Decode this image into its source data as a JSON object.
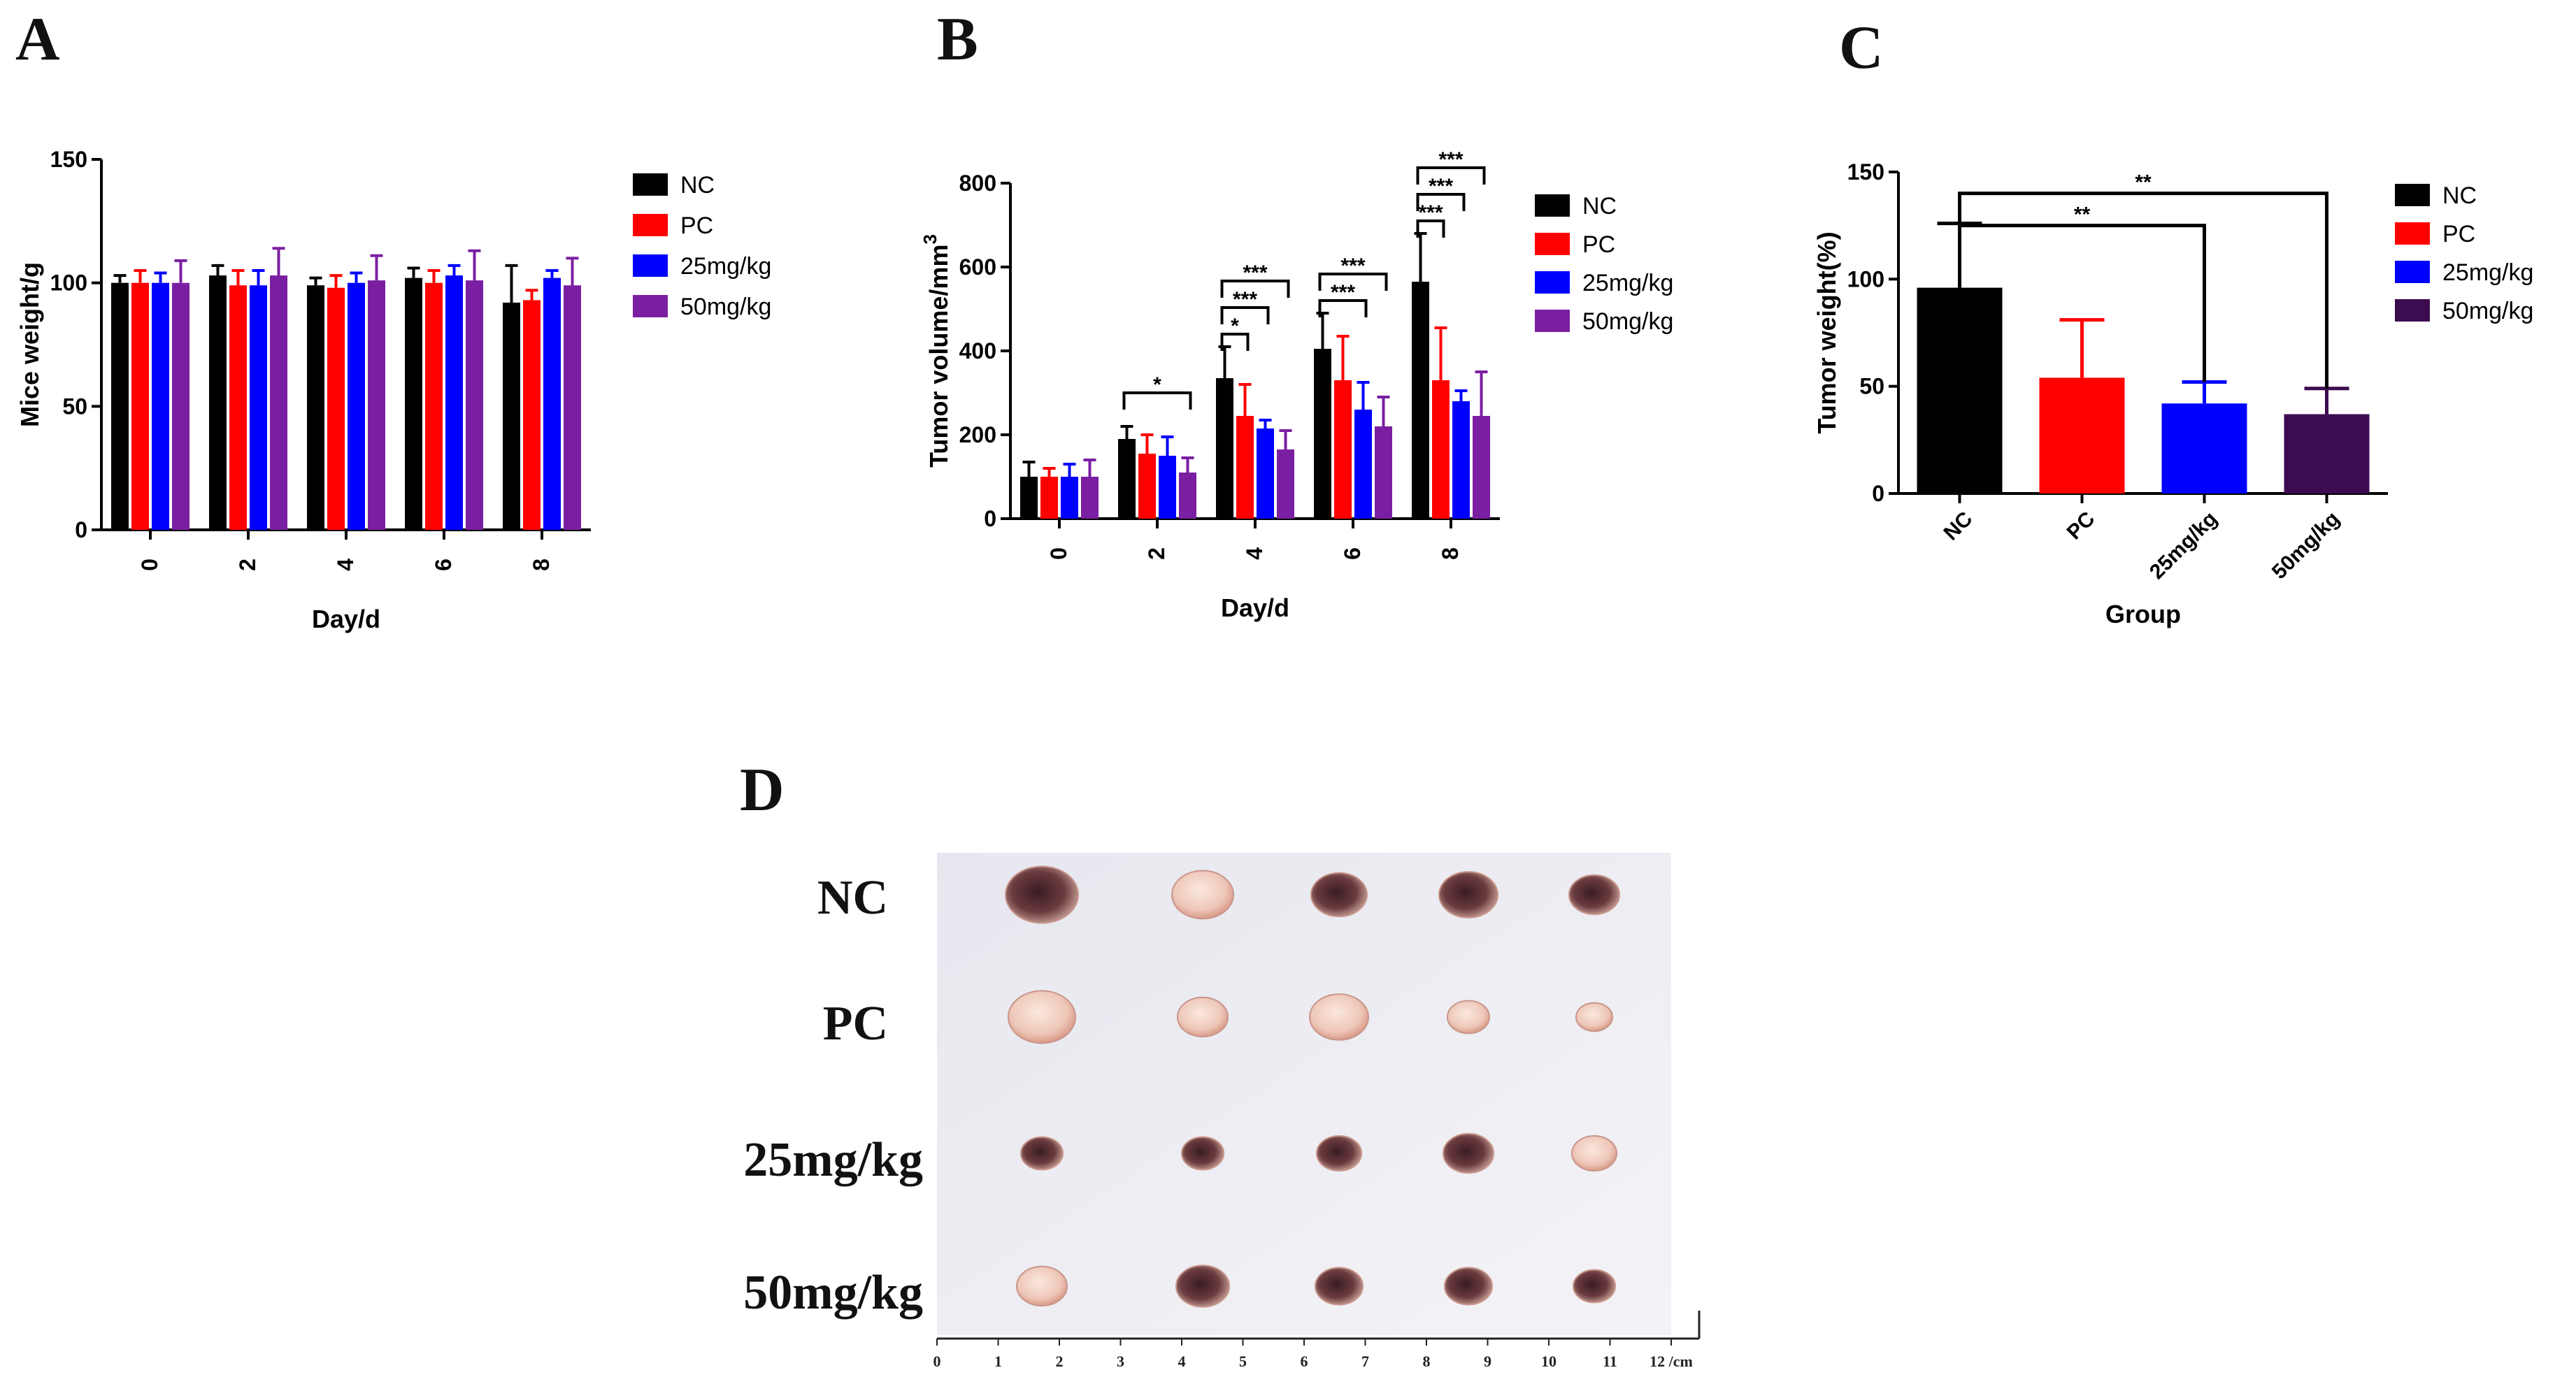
{
  "panels": {
    "a": "A",
    "b": "B",
    "c": "C",
    "d": "D"
  },
  "colors": {
    "NC": "#000000",
    "PC": "#ff0000",
    "25mg/kg": "#0000ff",
    "50mg/kg": "#7b1fa2",
    "C_50mg/kg": "#3d0b4f"
  },
  "chart_data": [
    {
      "id": "A",
      "type": "bar",
      "title": "",
      "xlabel": "Day/d",
      "ylabel": "Mice weight/g",
      "ylim": [
        0,
        150
      ],
      "yticks": [
        0,
        50,
        100,
        150
      ],
      "categories": [
        "0",
        "2",
        "4",
        "6",
        "8"
      ],
      "legend_position": "right",
      "series": [
        {
          "name": "NC",
          "values": [
            100,
            103,
            99,
            102,
            92
          ],
          "errors": [
            3,
            4,
            3,
            4,
            15
          ]
        },
        {
          "name": "PC",
          "values": [
            100,
            99,
            98,
            100,
            93
          ],
          "errors": [
            5,
            6,
            5,
            5,
            4
          ]
        },
        {
          "name": "25mg/kg",
          "values": [
            100,
            99,
            100,
            103,
            102
          ],
          "errors": [
            4,
            6,
            4,
            4,
            3
          ]
        },
        {
          "name": "50mg/kg",
          "values": [
            100,
            103,
            101,
            101,
            99
          ],
          "errors": [
            9,
            11,
            10,
            12,
            11
          ]
        }
      ]
    },
    {
      "id": "B",
      "type": "bar",
      "title": "",
      "xlabel": "Day/d",
      "ylabel": "Tumor volume/mm",
      "ylabel_sup": "3",
      "ylim": [
        0,
        800
      ],
      "yticks": [
        0,
        200,
        400,
        600,
        800
      ],
      "categories": [
        "0",
        "2",
        "4",
        "6",
        "8"
      ],
      "legend_position": "right",
      "series": [
        {
          "name": "NC",
          "values": [
            100,
            190,
            335,
            405,
            565
          ],
          "errors": [
            35,
            30,
            75,
            85,
            115
          ]
        },
        {
          "name": "PC",
          "values": [
            100,
            155,
            245,
            330,
            330
          ],
          "errors": [
            20,
            45,
            75,
            105,
            125
          ]
        },
        {
          "name": "25mg/kg",
          "values": [
            100,
            150,
            215,
            260,
            280
          ],
          "errors": [
            30,
            45,
            20,
            65,
            25
          ]
        },
        {
          "name": "50mg/kg",
          "values": [
            100,
            110,
            165,
            220,
            245
          ],
          "errors": [
            40,
            35,
            45,
            70,
            105
          ]
        }
      ],
      "significance": [
        {
          "day": "2",
          "to": "50mg/kg",
          "label": "*"
        },
        {
          "day": "4",
          "to": "PC",
          "label": "*"
        },
        {
          "day": "4",
          "to": "25mg/kg",
          "label": "***"
        },
        {
          "day": "4",
          "to": "50mg/kg",
          "label": "***"
        },
        {
          "day": "6",
          "to": "25mg/kg",
          "label": "***"
        },
        {
          "day": "6",
          "to": "50mg/kg",
          "label": "***"
        },
        {
          "day": "8",
          "to": "PC",
          "label": "***"
        },
        {
          "day": "8",
          "to": "25mg/kg",
          "label": "***"
        },
        {
          "day": "8",
          "to": "50mg/kg",
          "label": "***"
        }
      ]
    },
    {
      "id": "C",
      "type": "bar",
      "title": "",
      "xlabel": "Group",
      "ylabel": "Tumor weight(%)",
      "ylim": [
        0,
        150
      ],
      "yticks": [
        0,
        50,
        100,
        150
      ],
      "categories": [
        "NC",
        "PC",
        "25mg/kg",
        "50mg/kg"
      ],
      "legend_position": "right",
      "values": [
        96,
        54,
        42,
        37
      ],
      "errors": [
        30,
        27,
        10,
        12
      ],
      "significance": [
        {
          "from": "NC",
          "to": "25mg/kg",
          "label": "**"
        },
        {
          "from": "NC",
          "to": "50mg/kg",
          "label": "**"
        }
      ]
    }
  ],
  "photo": {
    "rows": [
      "NC",
      "PC",
      "25mg/kg",
      "50mg/kg"
    ],
    "ruler_labels": [
      "0",
      "1",
      "2",
      "3",
      "4",
      "5",
      "6",
      "7",
      "8",
      "9",
      "10",
      "11",
      "12 /cm"
    ]
  }
}
